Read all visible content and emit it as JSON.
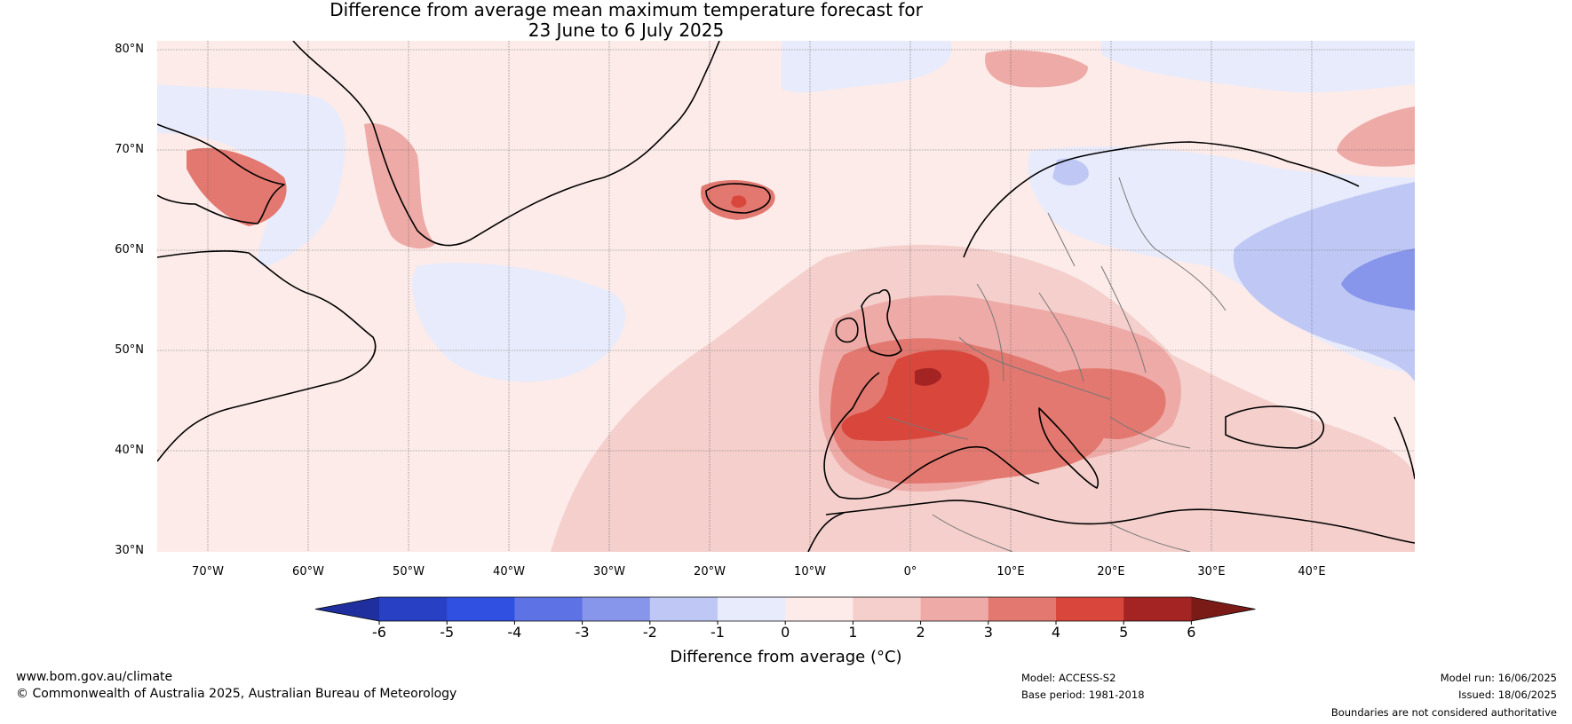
{
  "title": {
    "line1": "Difference from average mean maximum temperature forecast for",
    "line2": "23 June to 6 July 2025"
  },
  "map": {
    "projection": "plate-carree",
    "lat_labels": [
      "80°N",
      "70°N",
      "60°N",
      "50°N",
      "40°N",
      "30°N"
    ],
    "lon_labels": [
      "70°W",
      "60°W",
      "50°W",
      "40°W",
      "30°W",
      "20°W",
      "10°W",
      "0°",
      "10°E",
      "20°E",
      "30°E",
      "40°E"
    ],
    "lat_range": [
      30,
      81
    ],
    "lon_range": [
      -75,
      50
    ],
    "background_anomaly_color": "#fcebe9",
    "regions": [
      {
        "name": "western-europe-hot",
        "anomaly": "4 to 5",
        "color": "#d9463b"
      },
      {
        "name": "central-france-core",
        "anomaly": "5 to 6",
        "color": "#a42423"
      },
      {
        "name": "iberia-hot",
        "anomaly": "3 to 4",
        "color": "#e2786f"
      },
      {
        "name": "central-europe-warm",
        "anomaly": "2 to 3",
        "color": "#eeaaa6"
      },
      {
        "name": "iceland-warm",
        "anomaly": "4 to 5",
        "color": "#d9463b"
      },
      {
        "name": "baffin-warm",
        "anomaly": "3 to 4",
        "color": "#e2786f"
      },
      {
        "name": "russia-cool",
        "anomaly": "-2 to -1",
        "color": "#bfc8f5"
      },
      {
        "name": "russia-cool-core",
        "anomaly": "-3 to -2",
        "color": "#8796ea"
      },
      {
        "name": "scandinavia-cool",
        "anomaly": "-1 to 0",
        "color": "#e8ebfb"
      },
      {
        "name": "atlantic-cool",
        "anomaly": "-1 to 0",
        "color": "#e8ebfb"
      }
    ]
  },
  "colorbar": {
    "ticks": [
      "-6",
      "-5",
      "-4",
      "-3",
      "-2",
      "-1",
      "0",
      "1",
      "2",
      "3",
      "4",
      "5",
      "6"
    ],
    "colors": [
      "#1f2f9e",
      "#2840c4",
      "#2f50e0",
      "#5d72e4",
      "#8796ea",
      "#bfc8f5",
      "#e8ebfb",
      "#fcebe9",
      "#f4cfcc",
      "#eeaaa6",
      "#e2786f",
      "#d9463b",
      "#a42423",
      "#7a1b18"
    ],
    "label": "Difference from average (°C)"
  },
  "footer": {
    "website": "www.bom.gov.au/climate",
    "copyright": "© Commonwealth of Australia 2025, Australian Bureau of Meteorology",
    "model": "Model: ACCESS-S2",
    "base_period": "Base period: 1981-2018",
    "model_run": "Model run: 16/06/2025",
    "issued": "Issued: 18/06/2025",
    "disclaimer": "Boundaries are not considered authoritative"
  }
}
